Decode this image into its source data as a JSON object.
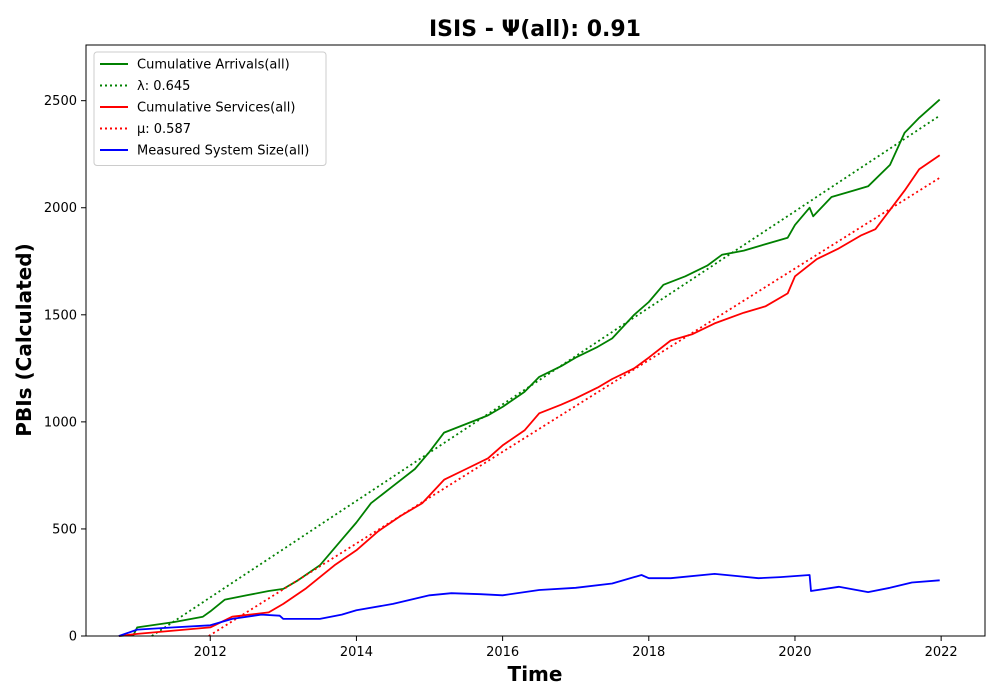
{
  "chart_data": {
    "type": "line",
    "title": "ISIS -  Ψ(all): 0.91",
    "xlabel": "Time",
    "ylabel": "PBIs (Calculated)",
    "xlim": [
      2010.3,
      2022.6
    ],
    "ylim": [
      0,
      2760
    ],
    "x_ticks": [
      "2012",
      "2014",
      "2016",
      "2018",
      "2020",
      "2022"
    ],
    "y_ticks": [
      "0",
      "500",
      "1000",
      "1500",
      "2000",
      "2500"
    ],
    "grid": false,
    "legend_position": "top-left",
    "series": [
      {
        "name": "Cumulative Arrivals(all)",
        "style": "solid",
        "color": "#008000",
        "x": [
          2010.75,
          2010.95,
          2011.0,
          2011.5,
          2011.9,
          2012.0,
          2012.2,
          2012.5,
          2012.8,
          2013.0,
          2013.2,
          2013.5,
          2013.8,
          2014.0,
          2014.2,
          2014.5,
          2014.8,
          2015.0,
          2015.2,
          2015.5,
          2015.8,
          2016.0,
          2016.3,
          2016.5,
          2016.8,
          2017.0,
          2017.3,
          2017.5,
          2017.8,
          2018.0,
          2018.2,
          2018.5,
          2018.8,
          2019.0,
          2019.3,
          2019.6,
          2019.9,
          2020.0,
          2020.2,
          2020.25,
          2020.5,
          2020.8,
          2021.0,
          2021.3,
          2021.5,
          2021.7,
          2021.98
        ],
        "values": [
          0,
          5,
          40,
          65,
          90,
          115,
          170,
          190,
          210,
          220,
          260,
          330,
          450,
          530,
          620,
          700,
          780,
          860,
          950,
          990,
          1030,
          1070,
          1140,
          1210,
          1260,
          1300,
          1350,
          1390,
          1500,
          1560,
          1640,
          1680,
          1730,
          1780,
          1800,
          1830,
          1860,
          1920,
          2000,
          1960,
          2050,
          2080,
          2100,
          2200,
          2350,
          2420,
          2505
        ]
      },
      {
        "name": "λ: 0.645",
        "style": "dotted",
        "color": "#008000",
        "x": [
          2011.2,
          2021.98
        ],
        "values": [
          0,
          2430
        ]
      },
      {
        "name": "Cumulative Services(all)",
        "style": "solid",
        "color": "#ff0000",
        "x": [
          2010.75,
          2011.0,
          2011.5,
          2012.0,
          2012.3,
          2012.8,
          2013.0,
          2013.3,
          2013.7,
          2014.0,
          2014.3,
          2014.6,
          2014.9,
          2015.2,
          2015.5,
          2015.8,
          2016.0,
          2016.3,
          2016.5,
          2016.8,
          2017.0,
          2017.3,
          2017.5,
          2017.8,
          2018.0,
          2018.3,
          2018.6,
          2018.9,
          2019.3,
          2019.6,
          2019.9,
          2020.0,
          2020.3,
          2020.6,
          2020.9,
          2021.1,
          2021.3,
          2021.5,
          2021.7,
          2021.98
        ],
        "values": [
          0,
          10,
          25,
          40,
          90,
          110,
          150,
          220,
          330,
          400,
          490,
          560,
          620,
          730,
          780,
          830,
          890,
          960,
          1040,
          1080,
          1110,
          1160,
          1200,
          1250,
          1300,
          1380,
          1410,
          1460,
          1510,
          1540,
          1600,
          1680,
          1760,
          1810,
          1870,
          1900,
          1990,
          2080,
          2180,
          2245
        ]
      },
      {
        "name": "μ: 0.587",
        "style": "dotted",
        "color": "#ff0000",
        "x": [
          2011.98,
          2021.98
        ],
        "values": [
          0,
          2140
        ]
      },
      {
        "name": "Measured System Size(all)",
        "style": "solid",
        "color": "#0000ff",
        "x": [
          2010.75,
          2011.0,
          2011.5,
          2012.0,
          2012.3,
          2012.7,
          2012.95,
          2013.0,
          2013.5,
          2013.8,
          2014.0,
          2014.5,
          2015.0,
          2015.3,
          2015.7,
          2016.0,
          2016.5,
          2017.0,
          2017.5,
          2017.9,
          2018.0,
          2018.3,
          2018.9,
          2019.2,
          2019.5,
          2019.8,
          2020.2,
          2020.22,
          2020.6,
          2021.0,
          2021.3,
          2021.6,
          2021.98
        ],
        "values": [
          0,
          30,
          40,
          50,
          80,
          100,
          95,
          80,
          80,
          100,
          120,
          150,
          190,
          200,
          195,
          190,
          215,
          225,
          245,
          285,
          270,
          270,
          290,
          280,
          270,
          275,
          285,
          210,
          230,
          205,
          225,
          250,
          260
        ]
      }
    ]
  }
}
